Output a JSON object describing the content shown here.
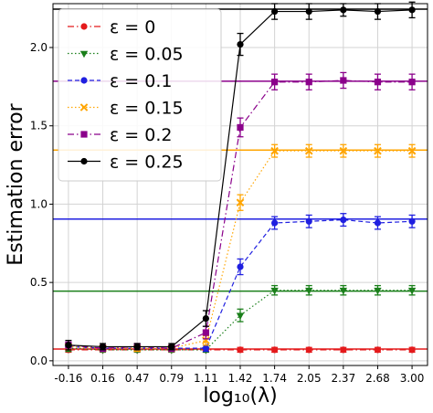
{
  "chart_data": {
    "type": "line",
    "title": "",
    "xlabel": "log₁₀(λ)",
    "ylabel": "Estimation error",
    "x": [
      -0.16,
      0.16,
      0.47,
      0.79,
      1.11,
      1.42,
      1.74,
      2.05,
      2.37,
      2.68,
      3.0
    ],
    "xtick_labels": [
      "-0.16",
      "0.16",
      "0.47",
      "0.79",
      "1.11",
      "1.42",
      "1.74",
      "2.05",
      "2.37",
      "2.68",
      "3.00"
    ],
    "ylim": [
      -0.03,
      2.28
    ],
    "yticks": [
      0.0,
      0.5,
      1.0,
      1.5,
      2.0
    ],
    "ytick_labels": [
      "0.0",
      "0.5",
      "1.0",
      "1.5",
      "2.0"
    ],
    "grid": true,
    "legend_position": "top-left",
    "series": [
      {
        "name": "ε = 0",
        "color": "#e41a1c",
        "marker": "circle",
        "line": "dashdot",
        "values": [
          0.07,
          0.07,
          0.07,
          0.07,
          0.07,
          0.07,
          0.07,
          0.07,
          0.07,
          0.07,
          0.07
        ],
        "errors": [
          0.015,
          0.015,
          0.015,
          0.015,
          0.015,
          0.015,
          0.015,
          0.015,
          0.015,
          0.015,
          0.015
        ],
        "reference": 0.075
      },
      {
        "name": "ε = 0.05",
        "color": "#1a7f1a",
        "marker": "triangle-down",
        "line": "dotted",
        "values": [
          0.08,
          0.07,
          0.07,
          0.07,
          0.07,
          0.29,
          0.45,
          0.45,
          0.45,
          0.45,
          0.45
        ],
        "errors": [
          0.02,
          0.015,
          0.015,
          0.015,
          0.015,
          0.04,
          0.03,
          0.03,
          0.03,
          0.03,
          0.03
        ],
        "reference": 0.445
      },
      {
        "name": "ε = 0.1",
        "color": "#1f1fe0",
        "marker": "circle",
        "line": "dashed",
        "values": [
          0.09,
          0.08,
          0.08,
          0.08,
          0.08,
          0.6,
          0.88,
          0.89,
          0.9,
          0.88,
          0.89
        ],
        "errors": [
          0.02,
          0.02,
          0.02,
          0.02,
          0.02,
          0.05,
          0.04,
          0.04,
          0.04,
          0.04,
          0.04
        ],
        "reference": 0.905
      },
      {
        "name": "ε = 0.15",
        "color": "#ffa500",
        "marker": "x",
        "line": "dotted",
        "values": [
          0.09,
          0.08,
          0.08,
          0.08,
          0.13,
          1.01,
          1.34,
          1.34,
          1.34,
          1.34,
          1.34
        ],
        "errors": [
          0.02,
          0.02,
          0.02,
          0.02,
          0.03,
          0.05,
          0.04,
          0.04,
          0.04,
          0.04,
          0.04
        ],
        "reference": 1.345
      },
      {
        "name": "ε = 0.2",
        "color": "#8b008b",
        "marker": "square",
        "line": "dashdot",
        "values": [
          0.1,
          0.08,
          0.09,
          0.08,
          0.18,
          1.49,
          1.78,
          1.78,
          1.79,
          1.78,
          1.78
        ],
        "errors": [
          0.02,
          0.02,
          0.02,
          0.02,
          0.04,
          0.06,
          0.05,
          0.05,
          0.05,
          0.05,
          0.05
        ],
        "reference": 1.785
      },
      {
        "name": "ε = 0.25",
        "color": "#000000",
        "marker": "circle",
        "line": "solid",
        "values": [
          0.1,
          0.09,
          0.09,
          0.09,
          0.27,
          2.02,
          2.23,
          2.23,
          2.24,
          2.23,
          2.24
        ],
        "errors": [
          0.03,
          0.02,
          0.02,
          0.02,
          0.05,
          0.07,
          0.05,
          0.05,
          0.04,
          0.05,
          0.05
        ],
        "reference": 2.245
      }
    ]
  }
}
